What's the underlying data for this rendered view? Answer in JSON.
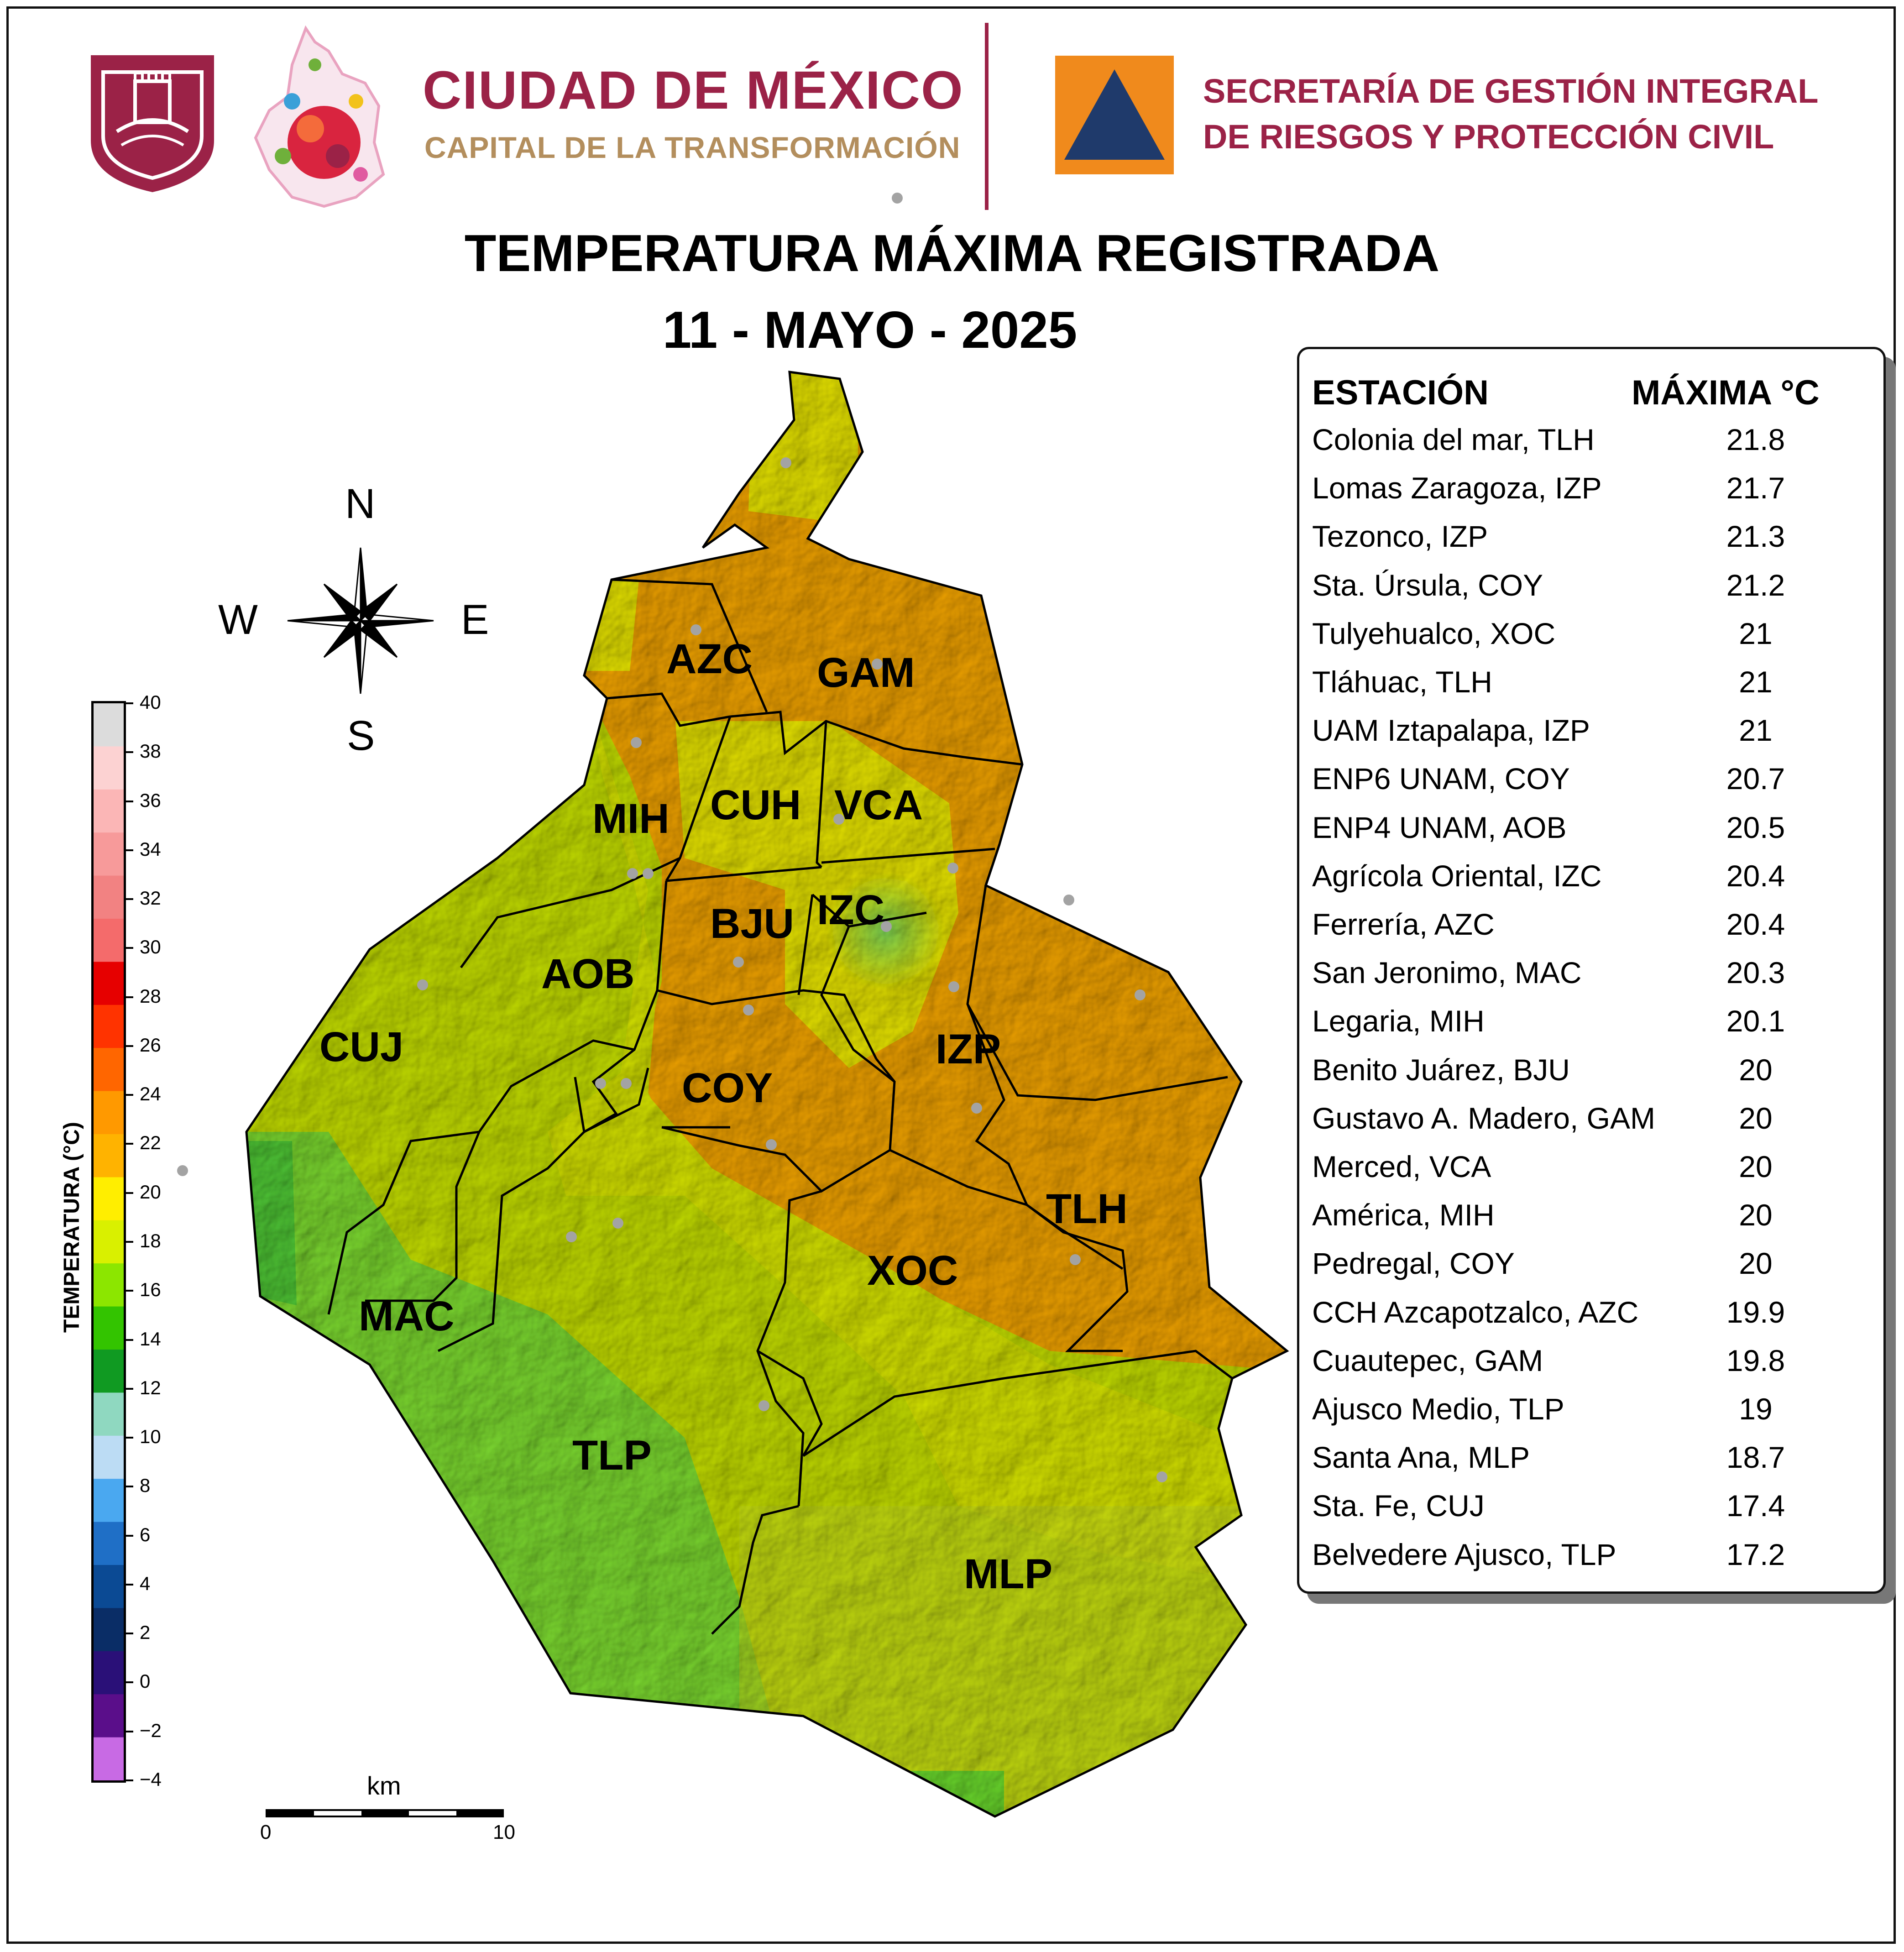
{
  "header": {
    "cdmx_title": "CIUDAD DE MÉXICO",
    "cdmx_subtitle": "CAPITAL DE LA TRANSFORMACIÓN",
    "agency_line1": "SECRETARÍA DE GESTIÓN INTEGRAL",
    "agency_line2": "DE RIESGOS Y PROTECCIÓN CIVIL"
  },
  "title": {
    "line1": "TEMPERATURA MÁXIMA REGISTRADA",
    "line2": "11 - MAYO - 2025"
  },
  "colors": {
    "brand_maroon": "#9b2247",
    "brand_gold": "#b38e5d",
    "pc_orange": "#f08a1c",
    "pc_navy": "#1f3a6b",
    "map_orange": "#f3a500",
    "map_yellow": "#e8e300",
    "map_green": "#6bd92e"
  },
  "compass": {
    "north": "N",
    "south": "S",
    "east": "E",
    "west": "W"
  },
  "colorbar": {
    "title": "TEMPERATURA (°C)",
    "ticks": [
      "40",
      "38",
      "36",
      "34",
      "32",
      "30",
      "28",
      "26",
      "24",
      "22",
      "20",
      "18",
      "16",
      "14",
      "12",
      "10",
      "8",
      "6",
      "4",
      "2",
      "0",
      "−2",
      "−4"
    ],
    "colors": [
      "#dcdcdc",
      "#fcd2d2",
      "#fbb6b6",
      "#f79a9a",
      "#f28282",
      "#f46b6b",
      "#e60000",
      "#ff3300",
      "#ff6600",
      "#ff9900",
      "#ffb300",
      "#ffee00",
      "#d9f000",
      "#8ce600",
      "#33c400",
      "#109a22",
      "#8fd8c0",
      "#bcdcf4",
      "#4aa8f0",
      "#1f6fc6",
      "#0b4a94",
      "#0a2d66",
      "#2a1078",
      "#5a0e8a",
      "#c86ae4"
    ]
  },
  "scale_bar": {
    "unit": "km",
    "min": "0",
    "max": "10"
  },
  "districts": [
    "AZC",
    "GAM",
    "MIH",
    "CUH",
    "VCA",
    "BJU",
    "IZC",
    "AOB",
    "CUJ",
    "COY",
    "IZP",
    "TLH",
    "XOC",
    "MAC",
    "TLP",
    "MLP"
  ],
  "table": {
    "header_station": "ESTACIÓN",
    "header_max": "MÁXIMA °C",
    "rows": [
      {
        "station": "Colonia del mar, TLH",
        "max": "21.8"
      },
      {
        "station": "Lomas Zaragoza, IZP",
        "max": "21.7"
      },
      {
        "station": "Tezonco, IZP",
        "max": "21.3"
      },
      {
        "station": "Sta. Úrsula, COY",
        "max": "21.2"
      },
      {
        "station": "Tulyehualco, XOC",
        "max": "21"
      },
      {
        "station": "Tláhuac, TLH",
        "max": "21"
      },
      {
        "station": "UAM Iztapalapa, IZP",
        "max": "21"
      },
      {
        "station": "ENP6 UNAM,  COY",
        "max": "20.7"
      },
      {
        "station": "ENP4 UNAM,  AOB",
        "max": "20.5"
      },
      {
        "station": "Agrícola Oriental, IZC",
        "max": "20.4"
      },
      {
        "station": "Ferrería, AZC",
        "max": "20.4"
      },
      {
        "station": "San Jeronimo, MAC",
        "max": "20.3"
      },
      {
        "station": "Legaria, MIH",
        "max": "20.1"
      },
      {
        "station": "Benito Juárez, BJU",
        "max": "20"
      },
      {
        "station": "Gustavo A. Madero, GAM",
        "max": "20"
      },
      {
        "station": "Merced, VCA",
        "max": "20"
      },
      {
        "station": "América, MIH",
        "max": "20"
      },
      {
        "station": "Pedregal, COY",
        "max": "20"
      },
      {
        "station": "CCH Azcapotzalco, AZC",
        "max": "19.9"
      },
      {
        "station": "Cuautepec, GAM",
        "max": "19.8"
      },
      {
        "station": "Ajusco Medio, TLP",
        "max": "19"
      },
      {
        "station": "Santa Ana, MLP",
        "max": "18.7"
      },
      {
        "station": "Sta. Fe, CUJ",
        "max": "17.4"
      },
      {
        "station": "Belvedere Ajusco, TLP",
        "max": "17.2"
      }
    ]
  }
}
